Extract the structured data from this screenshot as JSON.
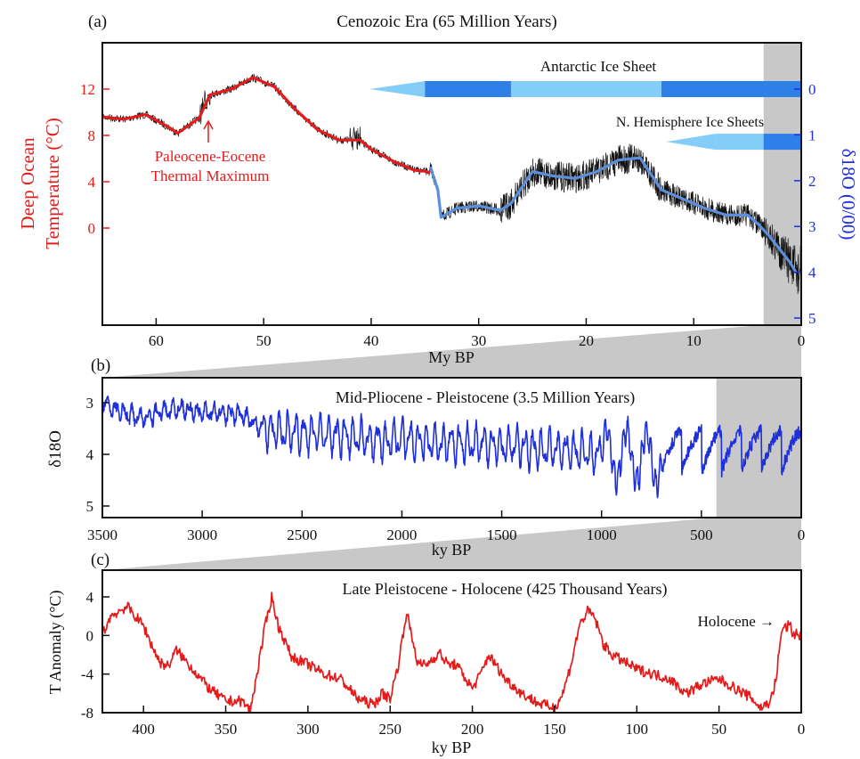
{
  "colors": {
    "temperature_red": "#e31b1b",
    "d18o_blue": "#1f2fd9",
    "smooth_blue": "#5b8fdc",
    "ice_dark": "#2f7fe8",
    "ice_light": "#84cdf8",
    "grey_band": "#c8c8c8",
    "raw_black": "#111111"
  },
  "chart_data": [
    {
      "type": "line",
      "panel": "(a)",
      "title": "Cenozoic Era (65 Million Years)",
      "xlabel": "My BP",
      "ylabel_left": [
        "Deep Ocean",
        "Temperature (°C)"
      ],
      "ylabel_right": "δ18O (0/00)",
      "xlim": [
        65,
        0
      ],
      "ylim_left": [
        -8,
        16
      ],
      "ylim_right": [
        0,
        5
      ],
      "xticks": [
        "60",
        "50",
        "40",
        "30",
        "20",
        "10",
        "0"
      ],
      "yticks_left": [
        "12",
        "8",
        "4",
        "0"
      ],
      "yticks_right": [
        "0",
        "1",
        "2",
        "3",
        "4",
        "5"
      ],
      "shaded_region_my": [
        3.5,
        0
      ],
      "annotations": [
        "Paleocene-Eocene",
        "Thermal Maximum"
      ],
      "ice_sheets": [
        {
          "label": "Antarctic Ice Sheet",
          "start_my": 35,
          "segments": [
            [
              35,
              27,
              "dark"
            ],
            [
              27,
              13,
              "light"
            ],
            [
              13,
              0,
              "dark"
            ]
          ],
          "level_d18o": 0
        },
        {
          "label": "N. Hemisphere Ice Sheets",
          "start_my": 8,
          "segments": [
            [
              8,
              3.5,
              "light"
            ],
            [
              3.5,
              0,
              "dark"
            ]
          ],
          "level_d18o": 1.15
        }
      ],
      "series": [
        {
          "name": "",
          "axis": "left",
          "color": "red",
          "x": [
            65,
            63,
            61,
            59,
            58,
            56,
            55,
            53,
            51,
            49,
            47,
            45,
            43,
            41,
            40,
            38,
            36,
            35,
            34.5
          ],
          "y": [
            9.6,
            9.4,
            9.8,
            8.8,
            8.2,
            9.5,
            11.5,
            12.0,
            13.0,
            12.2,
            10.2,
            8.5,
            7.6,
            7.6,
            6.8,
            5.8,
            5.0,
            4.9,
            4.8
          ]
        },
        {
          "name": "",
          "axis": "right",
          "color": "blue",
          "x": [
            34.5,
            33.8,
            33.5,
            32,
            30,
            28,
            27,
            25,
            23,
            21,
            19,
            17,
            15,
            13,
            11,
            9,
            7,
            5,
            4,
            3,
            2,
            1,
            0.5
          ],
          "y": [
            1.7,
            2.2,
            2.8,
            2.6,
            2.55,
            2.65,
            2.5,
            1.8,
            1.9,
            1.95,
            1.8,
            1.55,
            1.5,
            2.2,
            2.4,
            2.6,
            2.75,
            2.75,
            2.95,
            3.2,
            3.5,
            3.8,
            4.0
          ]
        }
      ]
    },
    {
      "type": "line",
      "panel": "(b)",
      "title": "Mid-Pliocene - Pleistocene (3.5 Million Years)",
      "xlabel": "ky BP",
      "ylabel": "δ18O",
      "xlim": [
        3500,
        0
      ],
      "ylim": [
        5.1,
        2.6
      ],
      "xticks": [
        "3500",
        "3000",
        "2500",
        "2000",
        "1500",
        "1000",
        "500",
        "0"
      ],
      "yticks": [
        "3",
        "4",
        "5"
      ],
      "shaded_region_ky": [
        425,
        0
      ],
      "series": [
        {
          "name": "",
          "color": "blue",
          "x": [
            3500,
            3400,
            3300,
            3200,
            3100,
            3000,
            2900,
            2800,
            2700,
            2600,
            2500,
            2400,
            2300,
            2200,
            2100,
            2000,
            1900,
            1800,
            1700,
            1600,
            1500,
            1400,
            1300,
            1200,
            1100,
            1000,
            900,
            800,
            700,
            600,
            500,
            425,
            400,
            350,
            300,
            250,
            200,
            150,
            100,
            50,
            0
          ],
          "y": [
            3.0,
            3.2,
            3.3,
            3.15,
            3.1,
            3.2,
            3.2,
            3.25,
            3.5,
            3.55,
            3.6,
            3.6,
            3.65,
            3.7,
            3.75,
            3.7,
            3.75,
            3.8,
            3.8,
            3.8,
            3.85,
            3.85,
            3.9,
            3.9,
            3.95,
            4.0,
            4.0,
            4.05,
            4.1,
            4.15,
            4.2,
            4.9,
            3.6,
            4.4,
            3.8,
            4.5,
            3.9,
            4.4,
            3.9,
            4.3,
            3.4
          ]
        }
      ]
    },
    {
      "type": "line",
      "panel": "(c)",
      "title": "Late Pleistocene - Holocene (425 Thousand Years)",
      "xlabel": "ky BP",
      "ylabel": "T Anomaly (°C)",
      "xlim": [
        425,
        0
      ],
      "ylim": [
        -8,
        6
      ],
      "xticks": [
        "400",
        "350",
        "300",
        "250",
        "200",
        "150",
        "100",
        "50",
        "0"
      ],
      "yticks": [
        "4",
        "0",
        "-4",
        "-8"
      ],
      "annotations": [
        "Holocene →"
      ],
      "series": [
        {
          "name": "",
          "color": "red",
          "x": [
            425,
            420,
            410,
            400,
            395,
            390,
            385,
            380,
            375,
            370,
            360,
            350,
            340,
            335,
            330,
            326,
            322,
            318,
            310,
            300,
            290,
            280,
            270,
            260,
            255,
            250,
            245,
            240,
            237,
            233,
            228,
            220,
            215,
            210,
            200,
            195,
            190,
            180,
            170,
            160,
            150,
            145,
            140,
            135,
            130,
            126,
            120,
            115,
            110,
            105,
            100,
            90,
            80,
            70,
            60,
            50,
            40,
            30,
            25,
            20,
            17,
            15,
            13,
            11,
            9,
            7,
            5,
            3,
            0
          ],
          "y": [
            0,
            2.0,
            3.0,
            1.0,
            -1.0,
            -2.8,
            -3.2,
            -1.5,
            -2.5,
            -3.5,
            -5.5,
            -6.8,
            -6.8,
            -7.8,
            -3.0,
            1.0,
            4.0,
            1.0,
            -2.2,
            -3.0,
            -4.0,
            -4.5,
            -6.5,
            -7.2,
            -6.0,
            -6.5,
            -3.0,
            2.5,
            0.0,
            -3.0,
            -3.0,
            -1.8,
            -3.0,
            -3.0,
            -5.5,
            -4.0,
            -2.0,
            -4.5,
            -6.0,
            -7.0,
            -7.5,
            -6.0,
            -3.0,
            1.0,
            2.5,
            2.0,
            -1.0,
            -2.0,
            -2.5,
            -3.0,
            -3.5,
            -4.0,
            -4.5,
            -6.0,
            -5.0,
            -4.5,
            -5.5,
            -6.5,
            -7.5,
            -7.0,
            -6.0,
            -4.0,
            -1.0,
            1.0,
            0.8,
            1.2,
            0.0,
            0.3,
            -0.2
          ]
        }
      ]
    }
  ]
}
